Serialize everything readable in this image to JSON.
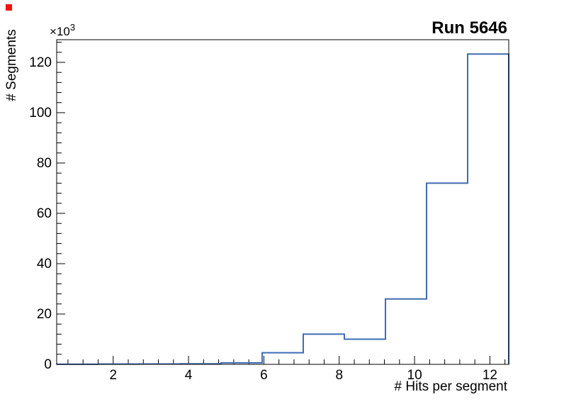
{
  "canvas": {
    "background": "#ffffff",
    "marker_color": "#f50f0f"
  },
  "chart_data": {
    "type": "bar",
    "style": "histogram-step-outline",
    "title": "Run 5646",
    "xlabel": "# Hits per segment",
    "ylabel": "# Segments",
    "y_exponent": {
      "base": "×10",
      "power": "3"
    },
    "line_color": "#3f6cb4",
    "axis_color": "#000000",
    "xlim": [
      0.5,
      12.5
    ],
    "ylim": [
      0,
      129
    ],
    "y_units": "counts × 10^3",
    "n_bins": 11,
    "bin_edges": [
      0.5,
      1.591,
      2.682,
      3.773,
      4.864,
      5.955,
      7.045,
      8.136,
      9.227,
      10.318,
      11.409,
      12.5
    ],
    "bin_values_thousands": [
      0.05,
      0.1,
      0.15,
      0.2,
      0.6,
      4.6,
      12.0,
      10.0,
      26.0,
      72.0,
      123.3
    ],
    "x_major_ticks": [
      2,
      4,
      6,
      8,
      10,
      12
    ],
    "x_minor_step": 0.4,
    "y_major_ticks": [
      0,
      20,
      40,
      60,
      80,
      100,
      120
    ],
    "y_minor_step": 4,
    "grid": false,
    "legend": false
  }
}
